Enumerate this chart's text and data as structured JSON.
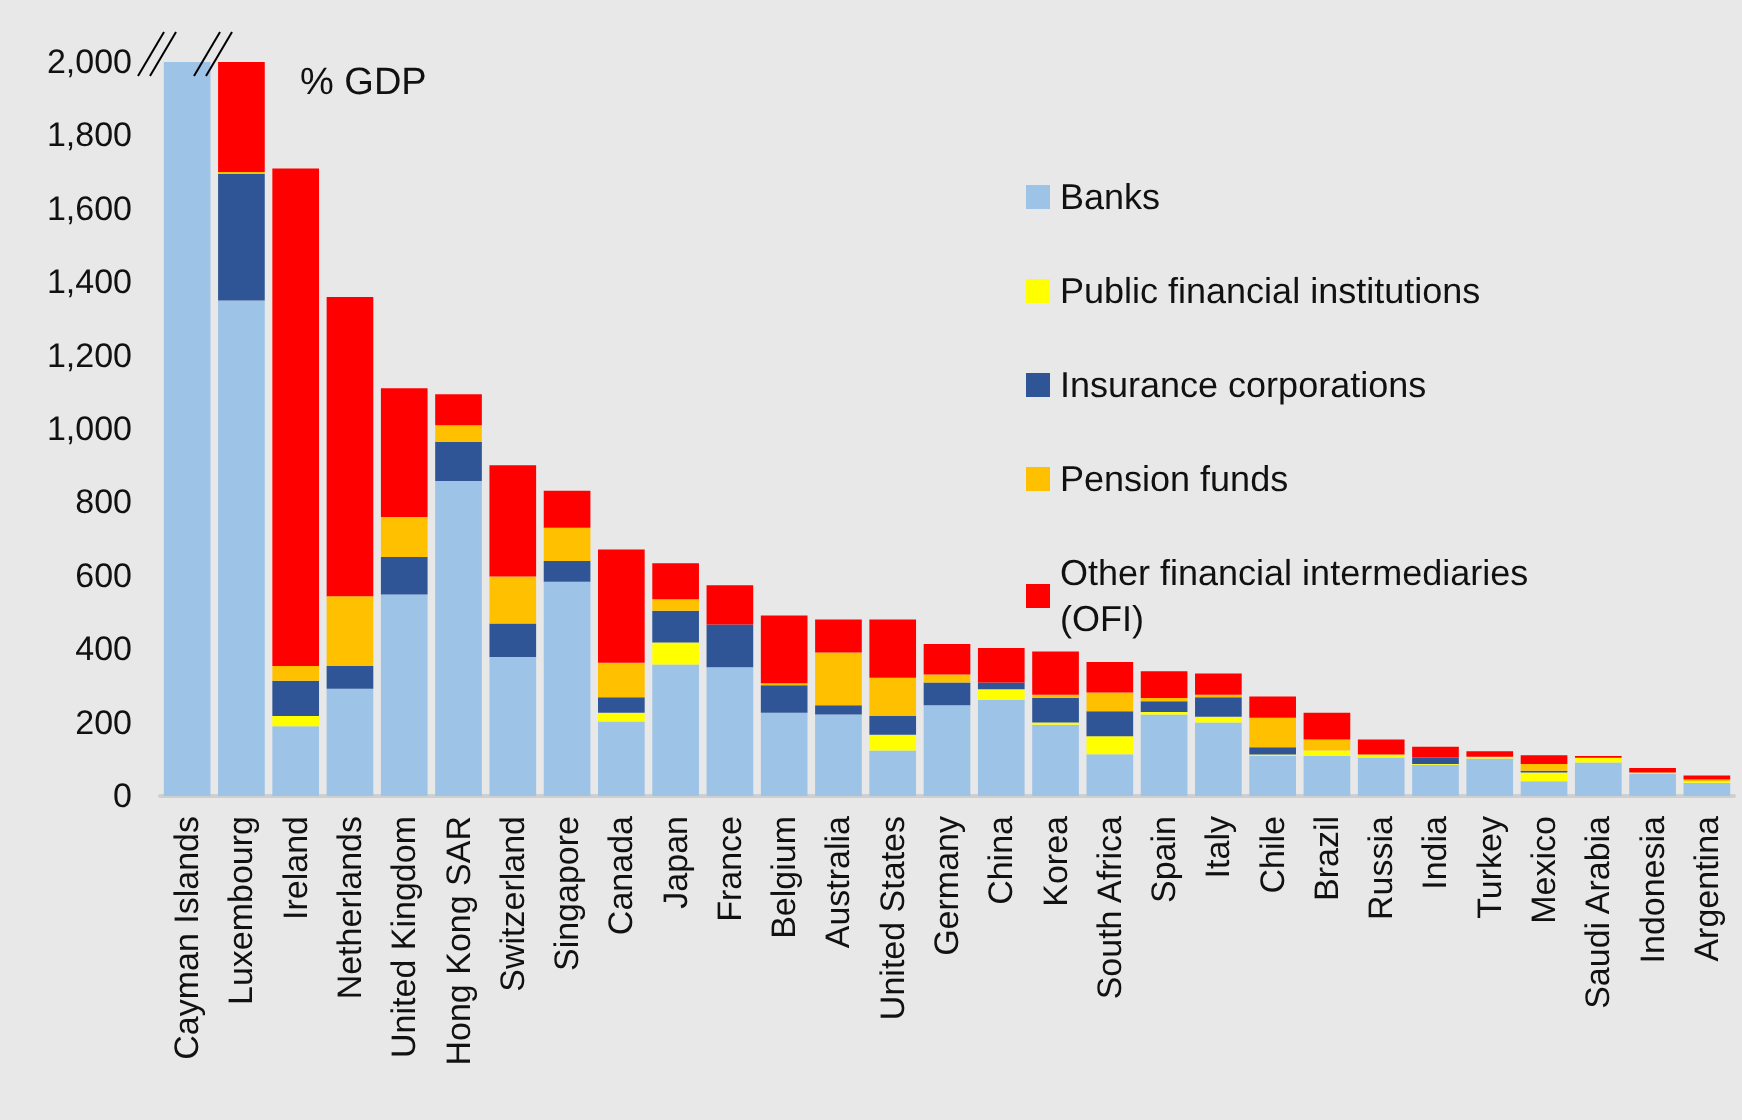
{
  "chart_data": {
    "type": "bar",
    "stacked": true,
    "ylabel": "% GDP",
    "categories": [
      "Cayman Islands",
      "Luxembourg",
      "Ireland",
      "Netherlands",
      "United Kingdom",
      "Hong Kong SAR",
      "Switzerland",
      "Singapore",
      "Canada",
      "Japan",
      "France",
      "Belgium",
      "Australia",
      "United States",
      "Germany",
      "China",
      "Korea",
      "South Africa",
      "Spain",
      "Italy",
      "Chile",
      "Brazil",
      "Russia",
      "India",
      "Turkey",
      "Mexico",
      "Saudi Arabia",
      "Indonesia",
      "Argentina"
    ],
    "series": [
      {
        "name": "Banks",
        "color": "#9dc3e6",
        "values": [
          2000,
          1350,
          190,
          292,
          549,
          858,
          379,
          584,
          203,
          358,
          351,
          227,
          222,
          124,
          247,
          262,
          194,
          114,
          222,
          200,
          109,
          109,
          105,
          85,
          102,
          40,
          91,
          60,
          36
        ]
      },
      {
        "name": "Public financial institutions",
        "color": "#ffff00",
        "values": [
          0,
          0,
          28,
          0,
          0,
          0,
          0,
          0,
          24,
          60,
          0,
          0,
          0,
          43,
          0,
          29,
          6,
          49,
          7,
          16,
          4,
          15,
          8,
          2,
          5,
          24,
          13,
          4,
          4
        ]
      },
      {
        "name": "Insurance corporations",
        "color": "#2f5597",
        "values": [
          0,
          345,
          96,
          62,
          102,
          107,
          91,
          56,
          42,
          87,
          116,
          75,
          25,
          51,
          62,
          18,
          67,
          68,
          29,
          53,
          20,
          0,
          0,
          18,
          0,
          5,
          0,
          0,
          0
        ]
      },
      {
        "name": "Pension funds",
        "color": "#ffc000",
        "values": [
          0,
          5,
          40,
          190,
          109,
          45,
          128,
          91,
          94,
          31,
          0,
          5,
          144,
          104,
          22,
          0,
          9,
          51,
          9,
          7,
          80,
          30,
          0,
          0,
          0,
          18,
          0,
          0,
          5
        ]
      },
      {
        "name": "Other financial intermediaries (OFI)",
        "color": "#ff0000",
        "values": [
          0,
          300,
          1356,
          816,
          351,
          85,
          303,
          101,
          309,
          98,
          107,
          185,
          90,
          159,
          83,
          94,
          118,
          83,
          73,
          58,
          58,
          73,
          41,
          29,
          15,
          24,
          5,
          12,
          11
        ]
      }
    ],
    "ylim": [
      0,
      2000
    ],
    "yticks": [
      0,
      200,
      400,
      600,
      800,
      {
        "value": 1000,
        "label": "1,000"
      },
      {
        "value": 1200,
        "label": "1,200"
      },
      {
        "value": 1400,
        "label": "1,400"
      },
      {
        "value": 1600,
        "label": "1,600"
      },
      {
        "value": 1800,
        "label": "1,800"
      },
      {
        "value": 2000,
        "label": "2,000"
      }
    ],
    "grid": false,
    "legend": "right"
  }
}
